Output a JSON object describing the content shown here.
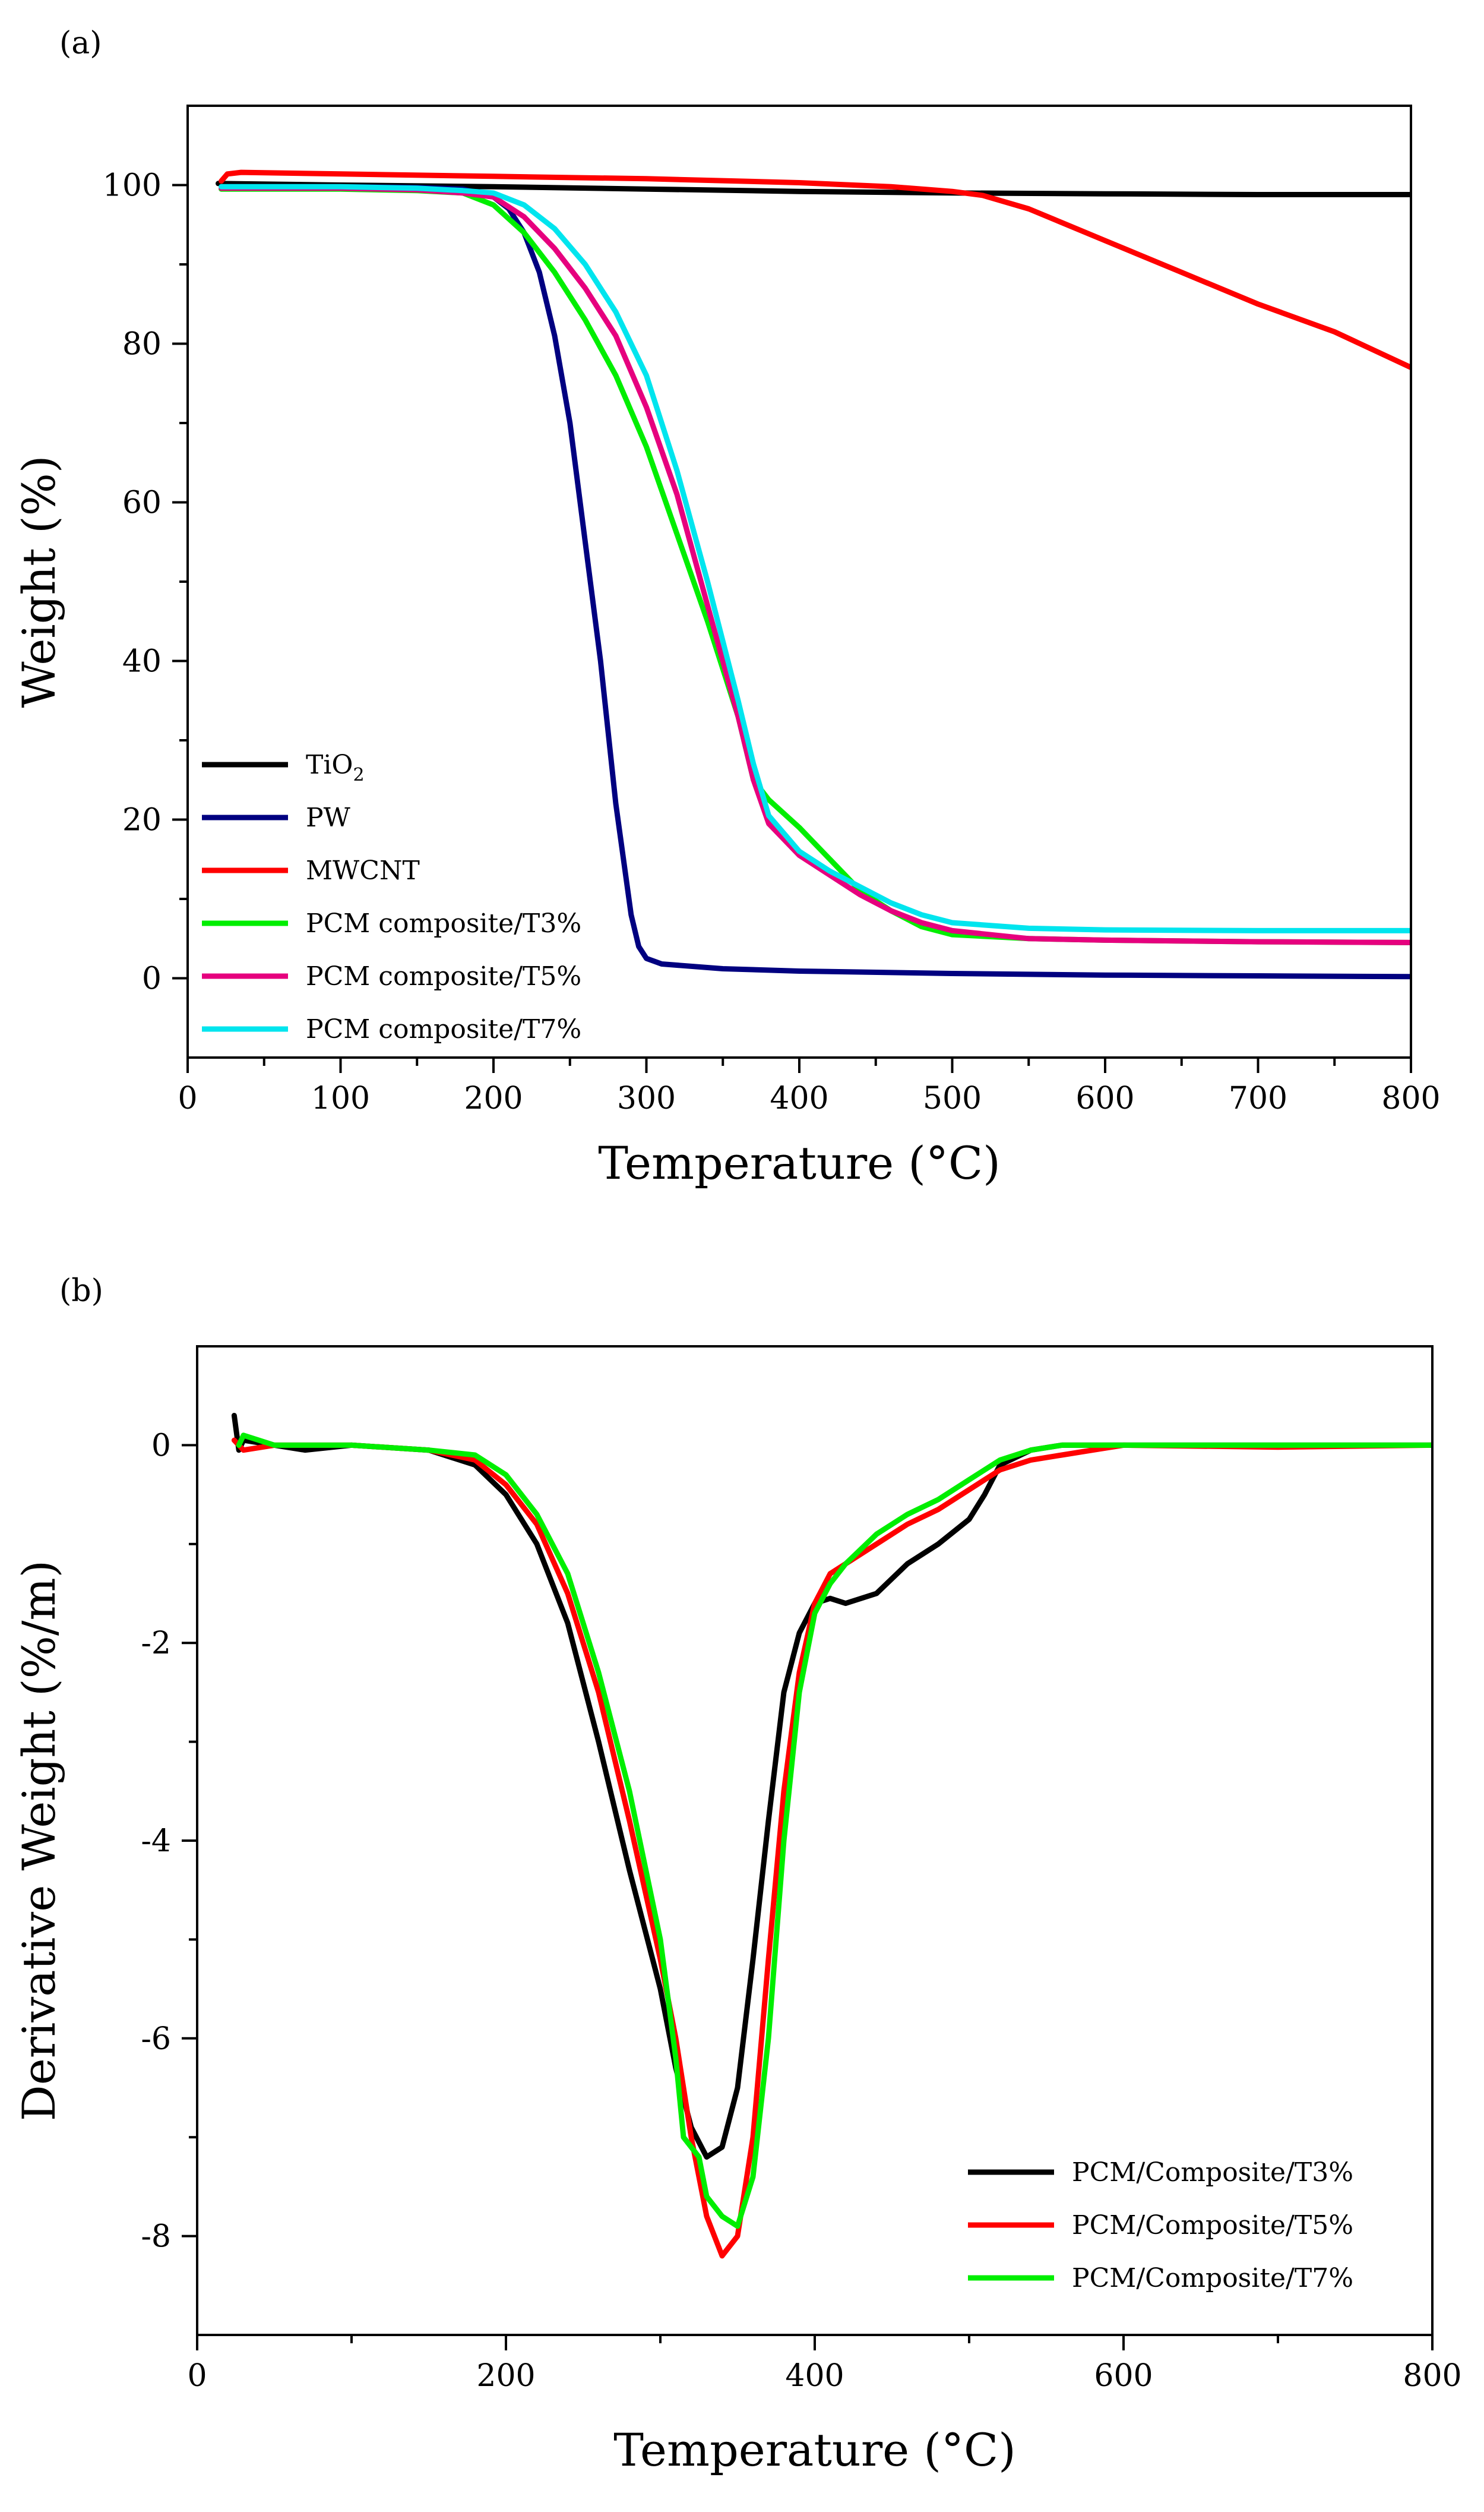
{
  "chart_data": [
    {
      "panel_label": "(a)",
      "type": "line",
      "xlabel": "Temperature (°C)",
      "ylabel": "Weight (%)",
      "xlim": [
        0,
        800
      ],
      "ylim": [
        -10,
        110
      ],
      "xticks": [
        0,
        100,
        200,
        300,
        400,
        500,
        600,
        700,
        800
      ],
      "yticks": [
        0,
        20,
        40,
        60,
        80,
        100
      ],
      "grid": false,
      "legend_position": "bottom-left",
      "series": [
        {
          "name": "TiO",
          "name_sub": "2",
          "color": "#000000",
          "points": [
            [
              20,
              100.2
            ],
            [
              100,
              100.0
            ],
            [
              200,
              99.8
            ],
            [
              300,
              99.5
            ],
            [
              400,
              99.2
            ],
            [
              500,
              99.0
            ],
            [
              600,
              98.9
            ],
            [
              700,
              98.8
            ],
            [
              800,
              98.8
            ]
          ]
        },
        {
          "name": "PW",
          "color": "#000080",
          "points": [
            [
              25,
              99.8
            ],
            [
              100,
              99.8
            ],
            [
              150,
              99.7
            ],
            [
              180,
              99.5
            ],
            [
              200,
              98.5
            ],
            [
              210,
              97.0
            ],
            [
              220,
              94.0
            ],
            [
              230,
              89.0
            ],
            [
              240,
              81.0
            ],
            [
              250,
              70.0
            ],
            [
              260,
              55.0
            ],
            [
              270,
              40.0
            ],
            [
              280,
              22.0
            ],
            [
              290,
              8.0
            ],
            [
              295,
              4.0
            ],
            [
              300,
              2.5
            ],
            [
              310,
              1.8
            ],
            [
              350,
              1.2
            ],
            [
              400,
              0.9
            ],
            [
              500,
              0.6
            ],
            [
              600,
              0.4
            ],
            [
              700,
              0.3
            ],
            [
              800,
              0.2
            ]
          ]
        },
        {
          "name": "MWCNT",
          "color": "#ff0000",
          "points": [
            [
              22,
              100.5
            ],
            [
              26,
              101.4
            ],
            [
              35,
              101.6
            ],
            [
              100,
              101.4
            ],
            [
              200,
              101.1
            ],
            [
              300,
              100.8
            ],
            [
              400,
              100.3
            ],
            [
              460,
              99.8
            ],
            [
              500,
              99.2
            ],
            [
              520,
              98.7
            ],
            [
              550,
              97.0
            ],
            [
              600,
              93.0
            ],
            [
              650,
              89.0
            ],
            [
              700,
              85.0
            ],
            [
              750,
              81.5
            ],
            [
              800,
              77.0
            ]
          ]
        },
        {
          "name": "PCM composite/T3%",
          "color": "#00ee00",
          "points": [
            [
              22,
              99.5
            ],
            [
              100,
              99.5
            ],
            [
              150,
              99.3
            ],
            [
              180,
              99.0
            ],
            [
              200,
              97.5
            ],
            [
              220,
              94.0
            ],
            [
              240,
              89.0
            ],
            [
              260,
              83.0
            ],
            [
              280,
              76.0
            ],
            [
              300,
              67.0
            ],
            [
              320,
              56.0
            ],
            [
              340,
              45.0
            ],
            [
              360,
              33.0
            ],
            [
              370,
              25.0
            ],
            [
              380,
              22.5
            ],
            [
              400,
              19.0
            ],
            [
              420,
              15.0
            ],
            [
              440,
              11.0
            ],
            [
              460,
              8.5
            ],
            [
              480,
              6.5
            ],
            [
              500,
              5.5
            ],
            [
              550,
              5.0
            ],
            [
              600,
              4.8
            ],
            [
              700,
              4.6
            ],
            [
              800,
              4.5
            ]
          ]
        },
        {
          "name": "PCM composite/T5%",
          "color": "#e6007e",
          "points": [
            [
              22,
              99.6
            ],
            [
              100,
              99.6
            ],
            [
              150,
              99.4
            ],
            [
              180,
              99.0
            ],
            [
              200,
              98.5
            ],
            [
              220,
              96.0
            ],
            [
              240,
              92.0
            ],
            [
              260,
              87.0
            ],
            [
              280,
              81.0
            ],
            [
              300,
              72.0
            ],
            [
              320,
              61.0
            ],
            [
              340,
              47.0
            ],
            [
              360,
              33.0
            ],
            [
              370,
              25.0
            ],
            [
              380,
              19.5
            ],
            [
              400,
              15.5
            ],
            [
              420,
              13.0
            ],
            [
              440,
              10.5
            ],
            [
              460,
              8.5
            ],
            [
              480,
              7.0
            ],
            [
              500,
              6.0
            ],
            [
              550,
              5.0
            ],
            [
              600,
              4.8
            ],
            [
              700,
              4.6
            ],
            [
              800,
              4.5
            ]
          ]
        },
        {
          "name": "PCM composite/T7%",
          "color": "#00e5ee",
          "points": [
            [
              22,
              99.8
            ],
            [
              100,
              99.8
            ],
            [
              150,
              99.6
            ],
            [
              180,
              99.3
            ],
            [
              200,
              99.0
            ],
            [
              220,
              97.5
            ],
            [
              240,
              94.5
            ],
            [
              260,
              90.0
            ],
            [
              280,
              84.0
            ],
            [
              300,
              76.0
            ],
            [
              320,
              64.0
            ],
            [
              340,
              50.0
            ],
            [
              360,
              35.0
            ],
            [
              370,
              27.0
            ],
            [
              380,
              20.5
            ],
            [
              400,
              16.0
            ],
            [
              420,
              13.5
            ],
            [
              440,
              11.5
            ],
            [
              460,
              9.5
            ],
            [
              480,
              8.0
            ],
            [
              500,
              7.0
            ],
            [
              550,
              6.3
            ],
            [
              600,
              6.1
            ],
            [
              700,
              6.0
            ],
            [
              800,
              6.0
            ]
          ]
        }
      ]
    },
    {
      "panel_label": "(b)",
      "type": "line",
      "xlabel": "Temperature (°C)",
      "ylabel": "Derivative Weight (%/m)",
      "xlim": [
        0,
        800
      ],
      "ylim": [
        -9,
        1
      ],
      "xticks": [
        0,
        200,
        400,
        600,
        800
      ],
      "yticks": [
        0,
        -2,
        -4,
        -6,
        -8
      ],
      "grid": false,
      "legend_position": "bottom-right",
      "series": [
        {
          "name": "PCM/Composite/T3%",
          "color": "#000000",
          "points": [
            [
              24,
              0.3
            ],
            [
              27,
              -0.05
            ],
            [
              30,
              0.05
            ],
            [
              50,
              0.0
            ],
            [
              70,
              -0.05
            ],
            [
              100,
              0.0
            ],
            [
              150,
              -0.05
            ],
            [
              180,
              -0.2
            ],
            [
              200,
              -0.5
            ],
            [
              220,
              -1.0
            ],
            [
              240,
              -1.8
            ],
            [
              260,
              -3.0
            ],
            [
              280,
              -4.3
            ],
            [
              300,
              -5.5
            ],
            [
              310,
              -6.3
            ],
            [
              320,
              -6.9
            ],
            [
              330,
              -7.2
            ],
            [
              340,
              -7.1
            ],
            [
              350,
              -6.5
            ],
            [
              360,
              -5.2
            ],
            [
              370,
              -3.8
            ],
            [
              380,
              -2.5
            ],
            [
              390,
              -1.9
            ],
            [
              400,
              -1.6
            ],
            [
              410,
              -1.55
            ],
            [
              420,
              -1.6
            ],
            [
              440,
              -1.5
            ],
            [
              460,
              -1.2
            ],
            [
              480,
              -1.0
            ],
            [
              500,
              -0.75
            ],
            [
              510,
              -0.5
            ],
            [
              520,
              -0.2
            ],
            [
              540,
              -0.05
            ],
            [
              560,
              0.0
            ],
            [
              600,
              0.0
            ],
            [
              700,
              0.0
            ],
            [
              800,
              0.0
            ]
          ]
        },
        {
          "name": "PCM/Composite/T5%",
          "color": "#ff0000",
          "points": [
            [
              24,
              0.05
            ],
            [
              30,
              -0.05
            ],
            [
              50,
              0.0
            ],
            [
              100,
              0.0
            ],
            [
              150,
              -0.05
            ],
            [
              180,
              -0.15
            ],
            [
              200,
              -0.4
            ],
            [
              220,
              -0.8
            ],
            [
              240,
              -1.5
            ],
            [
              260,
              -2.5
            ],
            [
              280,
              -3.8
            ],
            [
              300,
              -5.2
            ],
            [
              310,
              -6.0
            ],
            [
              320,
              -7.0
            ],
            [
              330,
              -7.8
            ],
            [
              340,
              -8.2
            ],
            [
              350,
              -8.0
            ],
            [
              360,
              -7.0
            ],
            [
              370,
              -5.2
            ],
            [
              380,
              -3.5
            ],
            [
              390,
              -2.3
            ],
            [
              400,
              -1.6
            ],
            [
              410,
              -1.3
            ],
            [
              420,
              -1.2
            ],
            [
              440,
              -1.0
            ],
            [
              460,
              -0.8
            ],
            [
              480,
              -0.65
            ],
            [
              500,
              -0.45
            ],
            [
              520,
              -0.25
            ],
            [
              540,
              -0.15
            ],
            [
              560,
              -0.1
            ],
            [
              580,
              -0.05
            ],
            [
              600,
              0.0
            ],
            [
              700,
              -0.02
            ],
            [
              800,
              0.0
            ]
          ]
        },
        {
          "name": "PCM/Composite/T7%",
          "color": "#00ee00",
          "points": [
            [
              27,
              0.0
            ],
            [
              30,
              0.1
            ],
            [
              50,
              0.0
            ],
            [
              100,
              0.0
            ],
            [
              150,
              -0.05
            ],
            [
              180,
              -0.1
            ],
            [
              200,
              -0.3
            ],
            [
              220,
              -0.7
            ],
            [
              240,
              -1.3
            ],
            [
              260,
              -2.3
            ],
            [
              280,
              -3.5
            ],
            [
              300,
              -5.0
            ],
            [
              310,
              -6.2
            ],
            [
              315,
              -7.0
            ],
            [
              320,
              -7.1
            ],
            [
              325,
              -7.2
            ],
            [
              330,
              -7.6
            ],
            [
              340,
              -7.8
            ],
            [
              350,
              -7.9
            ],
            [
              360,
              -7.4
            ],
            [
              370,
              -6.0
            ],
            [
              380,
              -4.0
            ],
            [
              390,
              -2.5
            ],
            [
              400,
              -1.7
            ],
            [
              410,
              -1.4
            ],
            [
              420,
              -1.2
            ],
            [
              440,
              -0.9
            ],
            [
              460,
              -0.7
            ],
            [
              480,
              -0.55
            ],
            [
              500,
              -0.35
            ],
            [
              520,
              -0.15
            ],
            [
              540,
              -0.05
            ],
            [
              560,
              0.0
            ],
            [
              600,
              0.0
            ],
            [
              700,
              0.0
            ],
            [
              800,
              0.0
            ]
          ]
        }
      ]
    }
  ]
}
